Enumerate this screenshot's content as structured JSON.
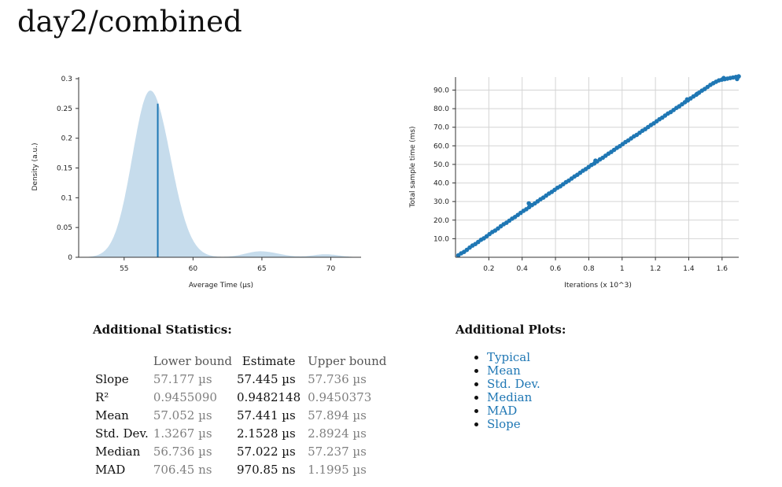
{
  "page": {
    "title": "day2/combined"
  },
  "colors": {
    "accent": "#1f77b4",
    "density_fill": "#c6dcec",
    "grid": "#d4d4d4",
    "muted_text": "#7f7f7f"
  },
  "stats": {
    "heading": "Additional Statistics:",
    "columns": [
      "",
      "Lower bound",
      "Estimate",
      "Upper bound"
    ],
    "rows": [
      {
        "name": "Slope",
        "lower": "57.177 µs",
        "estimate": "57.445 µs",
        "upper": "57.736 µs"
      },
      {
        "name": "R²",
        "lower": "0.9455090",
        "estimate": "0.9482148",
        "upper": "0.9450373"
      },
      {
        "name": "Mean",
        "lower": "57.052 µs",
        "estimate": "57.441 µs",
        "upper": "57.894 µs"
      },
      {
        "name": "Std. Dev.",
        "lower": "1.3267 µs",
        "estimate": "2.1528 µs",
        "upper": "2.8924 µs"
      },
      {
        "name": "Median",
        "lower": "56.736 µs",
        "estimate": "57.022 µs",
        "upper": "57.237 µs"
      },
      {
        "name": "MAD",
        "lower": "706.45 ns",
        "estimate": "970.85 ns",
        "upper": "1.1995 µs"
      }
    ]
  },
  "plots": {
    "heading": "Additional Plots:",
    "links": [
      "Typical",
      "Mean",
      "Std. Dev.",
      "Median",
      "MAD",
      "Slope"
    ]
  },
  "chart_data": [
    {
      "type": "area",
      "xlabel": "Average Time (µs)",
      "ylabel": "Density (a.u.)",
      "xlim": [
        51.7,
        72.2
      ],
      "ylim": [
        0,
        0.3
      ],
      "xticks": [
        55,
        60,
        65,
        70
      ],
      "yticks": [
        0,
        0.05,
        0.1,
        0.15,
        0.2,
        0.25,
        0.3
      ],
      "ytick_labels": [
        "0",
        "0.05",
        "0.1",
        "0.15",
        "0.2",
        "0.25",
        "0.3"
      ],
      "mean_line": {
        "x": 57.441,
        "y": 0.258
      },
      "components": [
        {
          "center": 56.9,
          "sigma_left": 1.3,
          "sigma_right": 1.45,
          "height": 0.28
        },
        {
          "center": 64.9,
          "sigma_left": 1.1,
          "sigma_right": 1.3,
          "height": 0.01
        },
        {
          "center": 69.6,
          "sigma_left": 0.9,
          "sigma_right": 1.0,
          "height": 0.005
        }
      ]
    },
    {
      "type": "scatter",
      "xlabel": "Iterations (x 10^3)",
      "ylabel": "Total sample time (ms)",
      "xlim": [
        0,
        1.7
      ],
      "ylim": [
        0,
        97
      ],
      "xticks": [
        0.2,
        0.4,
        0.6,
        0.8,
        1,
        1.2,
        1.4,
        1.6
      ],
      "xtick_labels": [
        "0.2",
        "0.4",
        "0.6",
        "0.8",
        "1",
        "1.2",
        "1.4",
        "1.6"
      ],
      "yticks": [
        10,
        20,
        30,
        40,
        50,
        60,
        70,
        80,
        90
      ],
      "ytick_labels": [
        "10.0",
        "20.0",
        "30.0",
        "40.0",
        "50.0",
        "60.0",
        "70.0",
        "80.0",
        "90.0"
      ],
      "grid": true,
      "x": [
        0.017,
        0.034,
        0.051,
        0.068,
        0.085,
        0.102,
        0.119,
        0.136,
        0.153,
        0.17,
        0.187,
        0.204,
        0.221,
        0.238,
        0.255,
        0.272,
        0.289,
        0.306,
        0.323,
        0.34,
        0.357,
        0.374,
        0.391,
        0.408,
        0.425,
        0.442,
        0.459,
        0.476,
        0.493,
        0.51,
        0.527,
        0.544,
        0.561,
        0.578,
        0.595,
        0.612,
        0.629,
        0.646,
        0.663,
        0.68,
        0.697,
        0.714,
        0.731,
        0.748,
        0.765,
        0.782,
        0.799,
        0.816,
        0.833,
        0.85,
        0.867,
        0.884,
        0.901,
        0.918,
        0.935,
        0.952,
        0.969,
        0.986,
        1.003,
        1.02,
        1.037,
        1.054,
        1.071,
        1.088,
        1.105,
        1.122,
        1.139,
        1.156,
        1.173,
        1.19,
        1.207,
        1.224,
        1.241,
        1.258,
        1.275,
        1.292,
        1.309,
        1.326,
        1.343,
        1.36,
        1.377,
        1.394,
        1.411,
        1.428,
        1.445,
        1.462,
        1.479,
        1.496,
        1.513,
        1.53,
        1.547,
        1.564,
        1.581,
        1.598,
        1.615,
        1.632,
        1.649,
        1.666,
        1.683,
        1.7,
        0.44,
        0.84,
        1.39,
        1.45,
        1.61,
        1.69
      ],
      "y": [
        1.0,
        2.1,
        2.9,
        4.0,
        5.2,
        6.3,
        7.1,
        8.2,
        9.4,
        10.2,
        11.3,
        12.5,
        13.6,
        14.4,
        15.5,
        16.7,
        17.8,
        18.6,
        19.7,
        20.8,
        21.7,
        22.8,
        23.9,
        25.0,
        25.9,
        27.0,
        28.1,
        29.0,
        30.1,
        31.2,
        32.1,
        33.2,
        34.3,
        35.2,
        36.3,
        37.4,
        38.2,
        39.3,
        40.4,
        41.3,
        42.4,
        43.5,
        44.4,
        45.5,
        46.6,
        47.5,
        48.6,
        49.7,
        50.5,
        51.6,
        52.7,
        53.6,
        54.7,
        55.8,
        56.7,
        57.8,
        58.9,
        59.8,
        60.9,
        62.0,
        62.9,
        64.0,
        65.1,
        65.9,
        67.0,
        68.1,
        69.0,
        70.1,
        71.2,
        72.1,
        73.2,
        74.3,
        75.2,
        76.3,
        77.4,
        78.2,
        79.3,
        80.4,
        81.3,
        82.4,
        83.5,
        84.4,
        85.5,
        86.6,
        87.5,
        88.6,
        89.7,
        90.6,
        91.7,
        92.8,
        93.7,
        94.5,
        95.2,
        95.6,
        95.9,
        96.2,
        96.5,
        96.8,
        97.1,
        97.4,
        29.0,
        52.0,
        85.0,
        88.0,
        96.5,
        96.0
      ]
    }
  ]
}
